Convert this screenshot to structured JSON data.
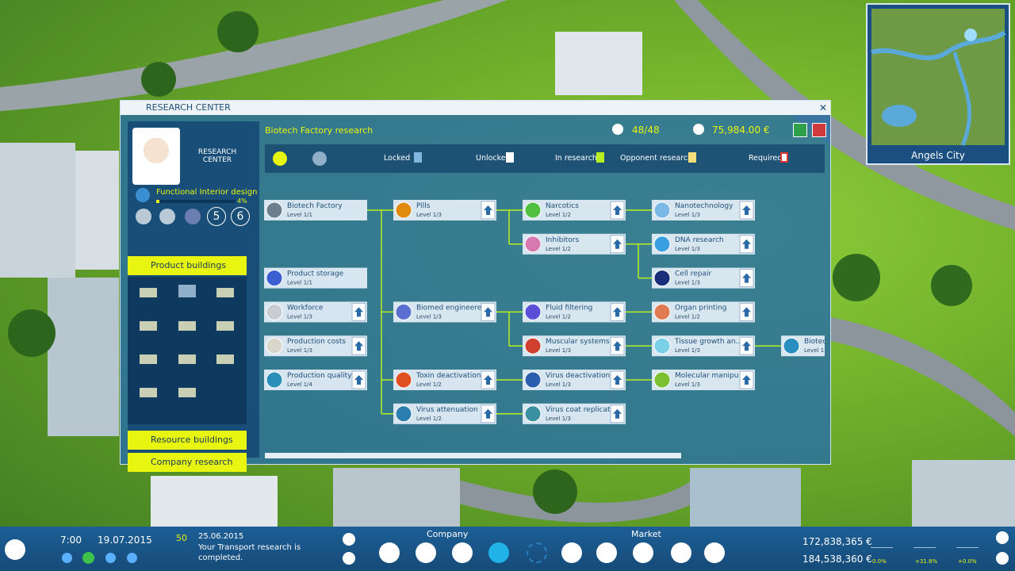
{
  "minimap": {
    "city": "Angels City"
  },
  "window": {
    "title": "RESEARCH CENTER",
    "subtitle": "Biotech Factory research",
    "slots": "48/48",
    "budget": "75,984.00 €",
    "legend": [
      "Locked",
      "Unlocked",
      "In research",
      "Opponent research",
      "Required"
    ]
  },
  "sidebar": {
    "logo": "RESEARCH CENTER",
    "current": "Functional Interior design",
    "progress": "4%",
    "badges": [
      "5",
      "6"
    ],
    "menu": [
      "Product buildings",
      "Resource buildings",
      "Company research"
    ]
  },
  "nodes": [
    {
      "name": "Biotech Factory",
      "level": "Level 1/1"
    },
    {
      "name": "Product storage",
      "level": "Level 1/1"
    },
    {
      "name": "Workforce",
      "level": "Level 1/3"
    },
    {
      "name": "Production costs",
      "level": "Level 1/3"
    },
    {
      "name": "Production quality",
      "level": "Level 1/4"
    },
    {
      "name": "Pills",
      "level": "Level 1/3"
    },
    {
      "name": "Biomed engineered",
      "level": "Level 1/3"
    },
    {
      "name": "Toxin deactivation",
      "level": "Level 1/2"
    },
    {
      "name": "Virus attenuation",
      "level": "Level 1/2"
    },
    {
      "name": "Narcotics",
      "level": "Level 1/2"
    },
    {
      "name": "Inhibitors",
      "level": "Level 1/2"
    },
    {
      "name": "Fluid filtering",
      "level": "Level 1/2"
    },
    {
      "name": "Muscular systems",
      "level": "Level 1/3"
    },
    {
      "name": "Virus deactivation...",
      "level": "Level 1/3"
    },
    {
      "name": "Virus coat replicat...",
      "level": "Level 1/3"
    },
    {
      "name": "Nanotechnology",
      "level": "Level 1/3"
    },
    {
      "name": "DNA research",
      "level": "Level 1/3"
    },
    {
      "name": "Cell repair",
      "level": "Level 1/3"
    },
    {
      "name": "Organ printing",
      "level": "Level 1/2"
    },
    {
      "name": "Tissue growth an...",
      "level": "Level 1/3"
    },
    {
      "name": "Molecular manipu...",
      "level": "Level 1/3"
    },
    {
      "name": "Biotec",
      "level": "Level 1"
    }
  ],
  "bottom_bar": {
    "time": "7:00",
    "date": "19.07.2015",
    "messages": "50",
    "message_date": "25.06.2015",
    "message": "Your Transport research is completed.",
    "company": "Company",
    "market": "Market",
    "money": "172,838,365 €",
    "value": "184,538,360 €",
    "stats": [
      "0.0%",
      "+31.8%",
      "+0.0%"
    ]
  }
}
